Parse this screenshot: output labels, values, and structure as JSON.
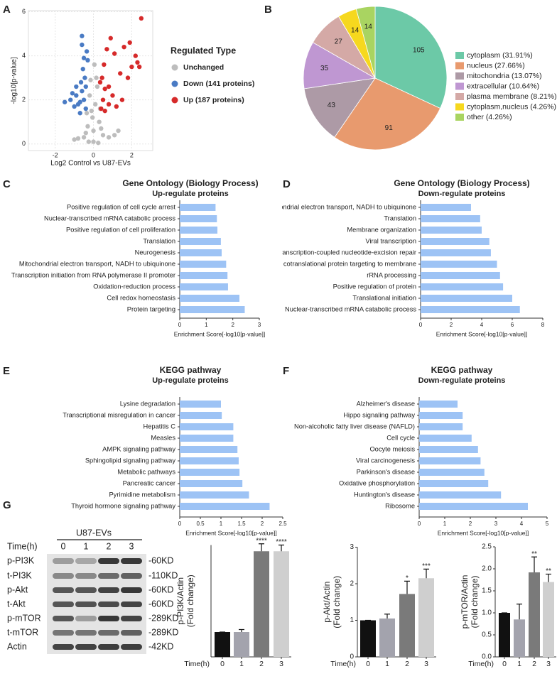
{
  "panel_labels": [
    "A",
    "B",
    "C",
    "D",
    "E",
    "F",
    "G"
  ],
  "chart_data": [
    {
      "type": "scatter",
      "xlabel": "Log2 Control vs U87-EVs",
      "ylabel": "-log10[p-value]",
      "legend_title": "Regulated Type",
      "grid": true,
      "xlim": [
        -3.4,
        3.1
      ],
      "xticks": [
        -2,
        0,
        2
      ],
      "ylim": [
        -0.3,
        6.05
      ],
      "yticks": [
        0,
        2,
        4,
        6
      ],
      "series": [
        {
          "name": "Unchanged",
          "color": "#bdbdbd",
          "x": [
            -0.5,
            -0.3,
            -0.1,
            0.1,
            0.3,
            0.5,
            -0.2,
            0.2,
            0,
            -0.4,
            0.4,
            0.15,
            -0.15,
            0.05,
            -0.05,
            0.8,
            -0.8,
            1.1,
            1.3,
            -1.0,
            0.25,
            -0.25,
            0.35,
            -0.35,
            0
          ],
          "values": [
            0.3,
            0.8,
            1.5,
            1.8,
            1.0,
            0.4,
            2.2,
            2.6,
            0.1,
            0.5,
            0.7,
            3.0,
            2.9,
            3.6,
            1.2,
            0.3,
            0.25,
            0.4,
            0.6,
            0.2,
            0.05,
            0.1,
            1.6,
            1.4,
            0.6
          ]
        },
        {
          "name": "Down (141 proteins)",
          "color": "#4a7bc4",
          "x": [
            -0.4,
            -0.5,
            -0.6,
            -0.7,
            -0.8,
            -0.9,
            -1.0,
            -1.2,
            -1.5,
            -0.45,
            -0.55,
            -0.65,
            -0.3,
            -0.35,
            -0.5,
            -0.4,
            -0.9,
            -1.1,
            -0.6,
            -0.7,
            -0.6
          ],
          "values": [
            1.6,
            2.0,
            2.4,
            1.9,
            1.8,
            2.2,
            1.7,
            2.0,
            1.9,
            3.0,
            3.4,
            2.8,
            3.8,
            4.2,
            3.9,
            2.6,
            2.6,
            2.3,
            4.5,
            1.4,
            4.9
          ]
        },
        {
          "name": "Up (187 proteins)",
          "color": "#d62a2a",
          "x": [
            0.4,
            0.5,
            0.6,
            0.8,
            1.0,
            1.2,
            1.5,
            1.8,
            2.0,
            2.3,
            2.5,
            0.45,
            0.55,
            0.7,
            0.9,
            1.1,
            1.4,
            1.6,
            2.2,
            0.35,
            0.6,
            1.9,
            2.4,
            0.8
          ],
          "values": [
            1.6,
            2.0,
            2.5,
            1.8,
            2.2,
            1.7,
            2.0,
            3.0,
            3.5,
            3.7,
            5.7,
            3.0,
            3.6,
            4.3,
            4.8,
            4.1,
            3.2,
            4.4,
            4.0,
            2.8,
            1.5,
            4.6,
            3.5,
            2.6
          ]
        }
      ]
    },
    {
      "type": "pie",
      "categories": [
        "cytoplasm (31.91%)",
        "nucleus (27.66%)",
        "mitochondria (13.07%)",
        "extracellular (10.64%)",
        "plasma membrane (8.21%)",
        "cytoplasm,nucleus (4.26%)",
        "other (4.26%)"
      ],
      "values": [
        105,
        91,
        43,
        35,
        27,
        14,
        14
      ],
      "colors": [
        "#6cc9a7",
        "#e89a6e",
        "#ad9aa6",
        "#bf97d2",
        "#d4a9a6",
        "#f6d81e",
        "#a9d461"
      ]
    },
    {
      "type": "barh",
      "title": "Gene Ontology (Biology Process)",
      "subtitle": "Up-regulate proteins",
      "xlabel": "Enrichment Score[-log10[p-value]]",
      "color": "#9dc3f5",
      "xlim": [
        0,
        3
      ],
      "xticks": [
        0,
        1,
        2,
        3
      ],
      "categories": [
        "Positive regulation of cell cycle arrest",
        "Nuclear-transcribed mRNA catabolic process",
        "Positive regulation of cell proliferation",
        "Translation",
        "Neurogenesis",
        "Mitochondrial electron transport, NADH to ubiquinone",
        "Transcription initiation from RNA polymerase II promoter",
        "Oxidation-reduction process",
        "Cell redox homeostasis",
        "Protein targeting"
      ],
      "values": [
        1.35,
        1.4,
        1.42,
        1.55,
        1.58,
        1.75,
        1.8,
        1.82,
        2.25,
        2.45
      ]
    },
    {
      "type": "barh",
      "title": "Gene Ontology (Biology Process)",
      "subtitle": "Down-regulate proteins",
      "xlabel": "Enrichment Score[-log10[p-value]]",
      "color": "#9dc3f5",
      "xlim": [
        0,
        8
      ],
      "xticks": [
        0,
        2,
        4,
        6,
        8
      ],
      "categories": [
        "Mitochondrial electron transport, NADH to ubiquinone",
        "Translation",
        "Membrane organization",
        "Viral transcription",
        "Transcription-coupled nucleotide-excision repair",
        "SRP-dependent cotranslational protein targeting to membrane",
        "rRNA processing",
        "Positive regulation of protein",
        "Translational initiation",
        "Nuclear-transcribed mRNA catabolic process"
      ],
      "values": [
        3.3,
        3.9,
        4.0,
        4.5,
        4.6,
        5.0,
        5.2,
        5.4,
        6.0,
        6.5
      ]
    },
    {
      "type": "barh",
      "title": "KEGG pathway",
      "subtitle": "Up-regulate proteins",
      "xlabel": "Enrichment Score[-log10[p-value]]",
      "color": "#9dc3f5",
      "xlim": [
        0,
        2.5
      ],
      "xticks": [
        0,
        0.5,
        1,
        1.5,
        2,
        2.5
      ],
      "categories": [
        "Lysine degradation",
        "Transcriptional misregulation in cancer",
        "Hepatitis C",
        "Measles",
        "AMPK signaling pathway",
        "Sphingolipid signaling pathway",
        "Metabolic pathways",
        "Pancreatic cancer",
        "Pyrimidine metabolism",
        "Thyroid hormone signaling pathway"
      ],
      "values": [
        1.0,
        1.02,
        1.3,
        1.3,
        1.4,
        1.43,
        1.45,
        1.52,
        1.68,
        2.18
      ]
    },
    {
      "type": "barh",
      "title": "KEGG pathway",
      "subtitle": "Down-regulate proteins",
      "xlabel": "Enrichment Score[-log10[p-value]]",
      "color": "#9dc3f5",
      "xlim": [
        0,
        5
      ],
      "xticks": [
        0,
        1,
        2,
        3,
        4,
        5
      ],
      "categories": [
        "Alzheimer's disease",
        "Hippo signaling pathway",
        "Non-alcoholic fatty liver disease (NAFLD)",
        "Cell cycle",
        "Oocyte meiosis",
        "Viral carcinogenesis",
        "Parkinson's disease",
        "Oxidative phosphorylation",
        "Huntington's disease",
        "Ribosome"
      ],
      "values": [
        1.5,
        1.7,
        1.7,
        2.05,
        2.3,
        2.4,
        2.55,
        2.7,
        3.2,
        4.25
      ]
    },
    {
      "type": "bar",
      "ylabel": [
        "p-PI3K/Actin",
        "(Fold change)"
      ],
      "xlabel": "Time(h)",
      "categories": [
        "0",
        "1",
        "2",
        "3"
      ],
      "values": [
        1,
        1.0,
        4.25,
        4.25
      ],
      "errors": [
        0,
        0.1,
        0.3,
        0.25
      ],
      "annotations": [
        null,
        null,
        "****",
        "****"
      ],
      "colors": [
        "#111111",
        "#a3a3ad",
        "#7a7a7a",
        "#cfcfcf"
      ],
      "ylim": [
        0,
        4.5
      ]
    },
    {
      "type": "bar",
      "ylabel": [
        "p-Akt/Actin",
        "(Fold change)"
      ],
      "xlabel": "Time(h)",
      "categories": [
        "0",
        "1",
        "2",
        "3"
      ],
      "values": [
        1,
        1.05,
        1.72,
        2.15
      ],
      "errors": [
        0,
        0.12,
        0.35,
        0.25
      ],
      "annotations": [
        null,
        null,
        "*",
        "***"
      ],
      "colors": [
        "#111111",
        "#a3a3ad",
        "#7a7a7a",
        "#cfcfcf"
      ],
      "ylim": [
        0,
        3
      ],
      "yticks": [
        0,
        1,
        2,
        3
      ]
    },
    {
      "type": "bar",
      "ylabel": [
        "p-mTOR/Actin",
        "(Fold change)"
      ],
      "xlabel": "Time(h)",
      "categories": [
        "0",
        "1",
        "2",
        "3"
      ],
      "values": [
        1,
        0.85,
        1.92,
        1.7
      ],
      "errors": [
        0,
        0.35,
        0.35,
        0.18
      ],
      "annotations": [
        null,
        null,
        "**",
        "**"
      ],
      "colors": [
        "#111111",
        "#a3a3ad",
        "#7a7a7a",
        "#cfcfcf"
      ],
      "ylim": [
        0,
        2.5
      ],
      "yticks": [
        {
          "value": 0,
          "label": "0.0"
        },
        0.5,
        {
          "value": 1,
          "label": "1.0"
        },
        1.5,
        {
          "value": 2,
          "label": "2.0"
        },
        2.5
      ]
    }
  ],
  "blot": {
    "title": "U87-EVs",
    "time_label": "Time(h)",
    "lanes": [
      "0",
      "1",
      "2",
      "3"
    ],
    "rows": [
      "p-PI3K",
      "t-PI3K",
      "p-Akt",
      "t-Akt",
      "p-mTOR",
      "t-mTOR",
      "Actin"
    ],
    "sizes": [
      "-60KD",
      "-110KD",
      "-60KD",
      "-60KD",
      "-289KD",
      "-289KD",
      "-42KD"
    ]
  }
}
